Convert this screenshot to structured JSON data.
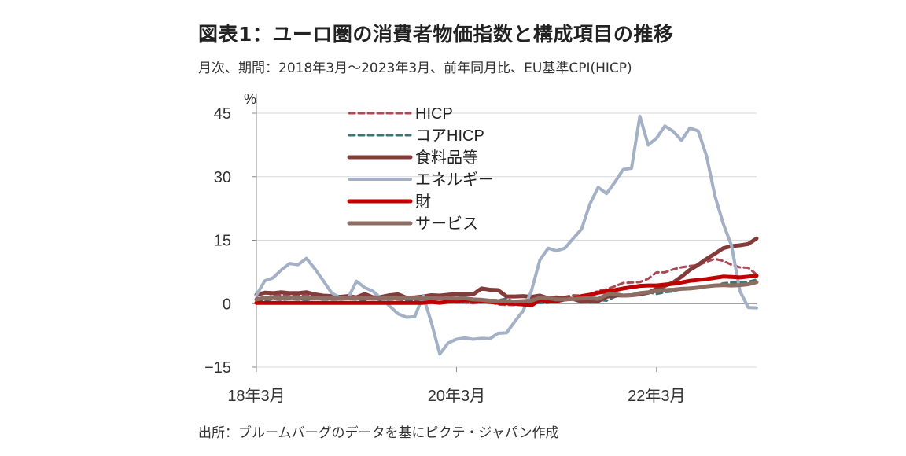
{
  "title": "図表1：ユーロ圏の消費者物価指数と構成項目の推移",
  "subtitle": "月次、期間：2018年3月～2023年3月、前年同月比、EU基準CPI(HICP)",
  "source": "出所：ブルームバーグのデータを基にピクテ・ジャパン作成",
  "chart_data": {
    "type": "line",
    "ylabel": "%",
    "ylim": [
      -15,
      45
    ],
    "yticks": [
      "45",
      "30",
      "15",
      "0",
      "−15"
    ],
    "x_tick_labels": [
      "18年3月",
      "20年3月",
      "22年3月"
    ],
    "x_start": "2018-03",
    "x_end": "2023-03",
    "legend_position": "top-center",
    "grid": "horizontal",
    "series": [
      {
        "name": "HICP",
        "color": "#a94a55",
        "style": "dashed",
        "width": 3,
        "values": [
          1.4,
          1.2,
          2.0,
          2.0,
          2.2,
          2.1,
          2.1,
          2.2,
          1.9,
          1.5,
          1.4,
          1.5,
          1.5,
          1.3,
          1.2,
          1.2,
          1.0,
          1.0,
          0.8,
          0.7,
          1.0,
          1.3,
          1.4,
          1.2,
          0.7,
          0.3,
          0.1,
          0.3,
          0.4,
          -0.2,
          -0.3,
          -0.3,
          -0.3,
          -0.3,
          0.9,
          0.9,
          1.3,
          1.6,
          2.0,
          1.9,
          2.2,
          3.0,
          3.4,
          4.1,
          4.9,
          5.0,
          5.1,
          5.9,
          7.4,
          7.4,
          8.1,
          8.6,
          8.9,
          9.1,
          9.9,
          10.6,
          10.1,
          9.2,
          8.6,
          8.5,
          6.9
        ]
      },
      {
        "name": "コアHICP",
        "color": "#3f7376",
        "style": "dashed",
        "width": 3,
        "values": [
          1.0,
          0.7,
          1.1,
          0.9,
          1.1,
          1.0,
          0.9,
          1.1,
          1.0,
          1.0,
          1.0,
          1.1,
          1.0,
          0.8,
          1.3,
          0.8,
          1.0,
          1.1,
          0.9,
          1.0,
          1.0,
          1.1,
          1.3,
          1.3,
          1.1,
          1.2,
          1.0,
          0.9,
          0.9,
          0.8,
          1.2,
          0.4,
          0.2,
          0.2,
          0.2,
          0.2,
          1.4,
          1.1,
          0.9,
          0.7,
          1.0,
          0.9,
          0.7,
          1.6,
          1.9,
          2.0,
          2.6,
          2.7,
          2.3,
          2.7,
          2.9,
          3.5,
          3.8,
          3.7,
          4.0,
          4.3,
          4.8,
          5.0,
          5.0,
          5.2,
          5.7
        ]
      },
      {
        "name": "食料品等",
        "color": "#843c3a",
        "style": "solid",
        "width": 5,
        "values": [
          2.1,
          2.6,
          2.5,
          2.7,
          2.5,
          2.5,
          2.7,
          2.2,
          1.9,
          1.8,
          1.6,
          1.8,
          1.5,
          2.3,
          1.5,
          1.6,
          2.0,
          2.2,
          1.4,
          1.5,
          1.7,
          2.0,
          1.9,
          2.1,
          2.3,
          2.3,
          2.2,
          3.6,
          3.3,
          3.2,
          1.7,
          1.7,
          1.8,
          1.6,
          1.9,
          1.3,
          1.5,
          1.3,
          1.1,
          0.5,
          0.7,
          0.6,
          1.6,
          2.0,
          1.9,
          2.0,
          2.2,
          2.6,
          3.5,
          4.2,
          5.0,
          6.4,
          8.0,
          9.2,
          10.6,
          11.8,
          13.1,
          13.6,
          13.8,
          14.1,
          15.4
        ]
      },
      {
        "name": "エネルギー",
        "color": "#a3b0c6",
        "style": "solid",
        "width": 4,
        "values": [
          2.0,
          5.4,
          6.1,
          8.0,
          9.5,
          9.2,
          10.7,
          8.3,
          5.5,
          2.6,
          1.4,
          1.3,
          5.3,
          3.8,
          2.9,
          1.2,
          -0.6,
          -2.4,
          -3.2,
          -3.1,
          1.9,
          -4.5,
          -11.9,
          -9.3,
          -8.4,
          -8.1,
          -8.4,
          -8.2,
          -8.3,
          -7.0,
          -6.9,
          -4.2,
          -1.7,
          3.1,
          10.3,
          13.1,
          12.5,
          13.1,
          15.4,
          17.6,
          23.5,
          27.5,
          26.0,
          28.7,
          31.7,
          32.0,
          44.3,
          37.5,
          39.1,
          42.0,
          40.7,
          38.6,
          41.5,
          40.8,
          34.9,
          25.5,
          18.9,
          13.7,
          3.0,
          -0.9,
          -1.0
        ]
      },
      {
        "name": "財",
        "color": "#c00000",
        "style": "solid",
        "width": 5,
        "values": [
          0.2,
          0.2,
          0.2,
          0.2,
          0.2,
          0.2,
          0.2,
          0.2,
          0.2,
          0.2,
          0.2,
          0.2,
          0.2,
          0.2,
          0.2,
          0.2,
          0.2,
          0.2,
          0.2,
          0.2,
          0.2,
          0.4,
          0.2,
          0.5,
          0.6,
          0.8,
          0.7,
          0.6,
          0.4,
          0.2,
          0.1,
          0.0,
          -0.2,
          -0.4,
          0.9,
          0.5,
          0.6,
          1.0,
          1.2,
          1.8,
          2.1,
          2.6,
          2.9,
          3.2,
          3.6,
          3.9,
          4.2,
          4.3,
          4.3,
          4.5,
          4.7,
          5.0,
          5.4,
          5.6,
          5.8,
          6.1,
          6.4,
          6.3,
          6.2,
          6.4,
          6.6
        ]
      },
      {
        "name": "サービス",
        "color": "#8d6e63",
        "style": "solid",
        "width": 5,
        "values": [
          1.0,
          1.4,
          1.5,
          1.3,
          1.5,
          1.4,
          1.5,
          1.3,
          1.4,
          1.3,
          1.2,
          1.3,
          1.3,
          1.3,
          1.2,
          1.3,
          1.3,
          1.3,
          1.4,
          1.4,
          1.2,
          1.3,
          1.2,
          1.3,
          1.2,
          1.3,
          1.0,
          0.9,
          0.7,
          0.6,
          0.6,
          0.5,
          0.6,
          0.7,
          1.4,
          1.3,
          1.0,
          1.0,
          1.1,
          1.2,
          1.3,
          1.1,
          2.1,
          2.3,
          1.9,
          2.0,
          2.5,
          2.7,
          3.0,
          3.2,
          3.3,
          3.5,
          3.6,
          3.8,
          4.1,
          4.3,
          4.4,
          4.3,
          4.4,
          4.6,
          5.1
        ]
      }
    ]
  }
}
